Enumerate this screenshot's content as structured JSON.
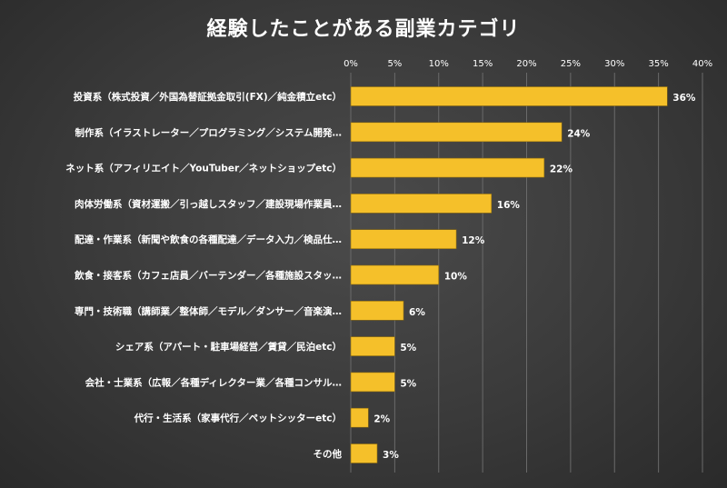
{
  "chart_data": {
    "type": "bar",
    "orientation": "horizontal",
    "title": "経験したことがある副業カテゴリ",
    "categories": [
      "投資系（株式投資／外国為替証拠金取引(FX)／純金積立etc）",
      "制作系（イラストレーター／プログラミング／システム開発…",
      "ネット系（アフィリエイト／YouTuber／ネットショップetc）",
      "肉体労働系（資材運搬／引っ越しスタッフ／建設現場作業員…",
      "配達・作業系（新聞や飲食の各種配達／データ入力／検品仕…",
      "飲食・接客系（カフェ店員／バーテンダー／各種施設スタッ…",
      "専門・技術職（講師業／整体師／モデル／ダンサー／音楽演…",
      "シェア系（アパート・駐車場経営／賃貸／民泊etc）",
      "会社・士業系（広報／各種ディレクター業／各種コンサル…",
      "代行・生活系（家事代行／ペットシッターetc）",
      "その他"
    ],
    "values": [
      36,
      24,
      22,
      16,
      12,
      10,
      6,
      5,
      5,
      2,
      3
    ],
    "value_labels": [
      "36%",
      "24%",
      "22%",
      "16%",
      "12%",
      "10%",
      "6%",
      "5%",
      "5%",
      "2%",
      "3%"
    ],
    "xlim": [
      0,
      40
    ],
    "xticks": [
      0,
      5,
      10,
      15,
      20,
      25,
      30,
      35,
      40
    ],
    "xtick_labels": [
      "0%",
      "5%",
      "10%",
      "15%",
      "20%",
      "25%",
      "30%",
      "35%",
      "40%"
    ],
    "x_axis_position": "top",
    "grid": true,
    "bar_color": "#f5c02a"
  }
}
